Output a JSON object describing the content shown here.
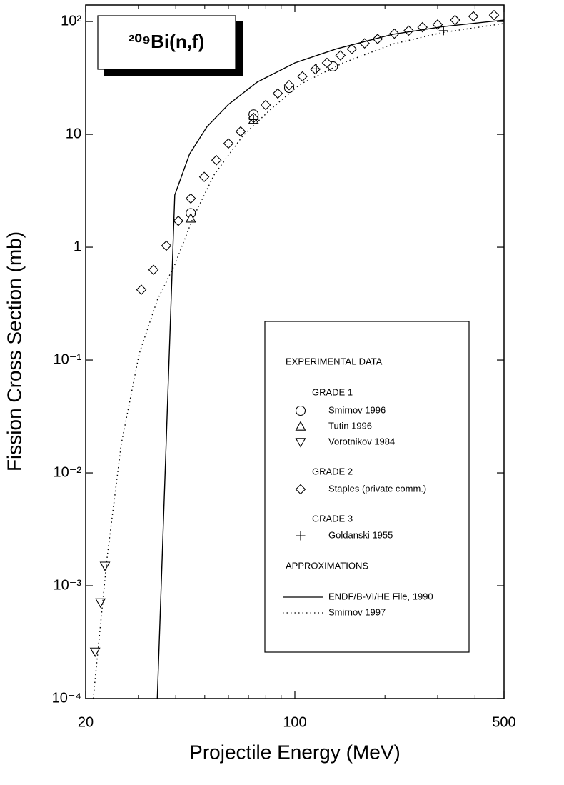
{
  "chart_data": {
    "type": "scatter",
    "title": "²⁰⁹Bi(n,f)",
    "x_label": "Projectile Energy (MeV)",
    "y_label": "Fission Cross Section (mb)",
    "xscale": "log",
    "yscale": "log",
    "xlim": [
      20,
      500
    ],
    "ylim": [
      0.0001,
      140
    ],
    "xticks": [
      20,
      100,
      500
    ],
    "xminorticks": [
      30,
      40,
      50,
      60,
      70,
      80,
      90,
      200,
      300,
      400
    ],
    "yticks": [
      {
        "value": 0.0001,
        "label": "10⁻⁴"
      },
      {
        "value": 0.001,
        "label": "10⁻³"
      },
      {
        "value": 0.01,
        "label": "10⁻²"
      },
      {
        "value": 0.1,
        "label": "10⁻¹"
      },
      1,
      10,
      {
        "value": 100,
        "label": "10²"
      }
    ],
    "legend_headings": {
      "experimental": "EXPERIMENTAL DATA",
      "grade1": "GRADE 1",
      "grade2": "GRADE 2",
      "grade3": "GRADE 3",
      "approximations": "APPROXIMATIONS"
    },
    "series": [
      {
        "name": "Smirnov 1996",
        "kind": "marker",
        "marker": "circle",
        "color": "#000000",
        "x": [
          44.9,
          72.8,
          95.7,
          134
        ],
        "y": [
          2.0,
          15,
          25.8,
          40
        ]
      },
      {
        "name": "Tutin 1996",
        "kind": "marker",
        "marker": "triangle-up",
        "color": "#000000",
        "x": [
          44.9,
          72.8
        ],
        "y": [
          1.8,
          13.5
        ]
      },
      {
        "name": "Vorotnikov 1984",
        "kind": "marker",
        "marker": "triangle-down",
        "color": "#000000",
        "x": [
          21.5,
          22.4,
          23.2
        ],
        "y": [
          0.00026,
          0.00071,
          0.0015
        ]
      },
      {
        "name": "Staples (private comm.)",
        "kind": "marker",
        "marker": "diamond",
        "color": "#000000",
        "x": [
          30.7,
          33.7,
          37.2,
          40.8,
          44.9,
          49.8,
          54.7,
          60.0,
          65.9,
          72.8,
          79.9,
          87.7,
          95.7,
          106,
          117,
          128,
          142,
          155,
          171,
          189,
          215,
          240,
          267,
          300,
          343,
          395,
          463
        ],
        "y": [
          0.42,
          0.63,
          1.03,
          1.71,
          2.7,
          4.2,
          5.9,
          8.3,
          10.6,
          14,
          18.2,
          23,
          27.3,
          32.6,
          37.7,
          43,
          50,
          57,
          64,
          70,
          78,
          83,
          89,
          94,
          103,
          111,
          114
        ]
      },
      {
        "name": "Goldanski 1955",
        "kind": "marker",
        "marker": "plus",
        "color": "#000000",
        "x": [
          72.8,
          118,
          314
        ],
        "y": [
          13.5,
          38,
          83
        ]
      },
      {
        "name": "ENDF/B-VI/HE File, 1990",
        "kind": "line",
        "dash": "solid",
        "color": "#000000",
        "x": [
          34.7,
          39.7,
          44.5,
          50.9,
          60,
          74.8,
          100,
          137,
          212,
          312,
          500
        ],
        "y": [
          0.0001,
          2.9,
          6.7,
          11.7,
          18.4,
          29,
          43,
          57,
          77,
          90,
          103
        ]
      },
      {
        "name": "Smirnov 1997",
        "kind": "line",
        "dash": "dotted",
        "color": "#000000",
        "x": [
          21.2,
          23.6,
          26.3,
          30.2,
          34.7,
          39.7,
          45.7,
          53.8,
          67,
          83.5,
          104,
          145,
          212,
          312,
          500
        ],
        "y": [
          0.0001,
          0.0018,
          0.018,
          0.114,
          0.34,
          0.7,
          1.82,
          4.4,
          9.7,
          16.9,
          27.7,
          43,
          63,
          80,
          96
        ]
      }
    ]
  }
}
